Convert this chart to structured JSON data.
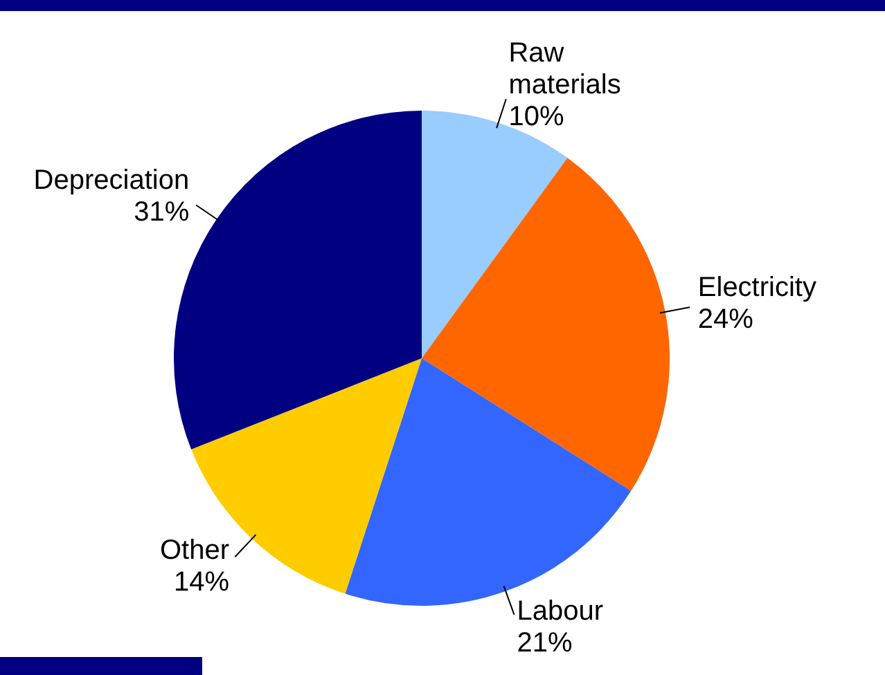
{
  "chart_data": {
    "type": "pie",
    "categories": [
      "Raw materials",
      "Electricity",
      "Labour",
      "Other",
      "Depreciation"
    ],
    "values": [
      10,
      24,
      21,
      14,
      31
    ],
    "colors": [
      "#99ccff",
      "#ff6600",
      "#3366ff",
      "#ffcc00",
      "#000080"
    ],
    "value_labels": [
      "10%",
      "24%",
      "21%",
      "14%",
      "31%"
    ],
    "legend": false
  }
}
